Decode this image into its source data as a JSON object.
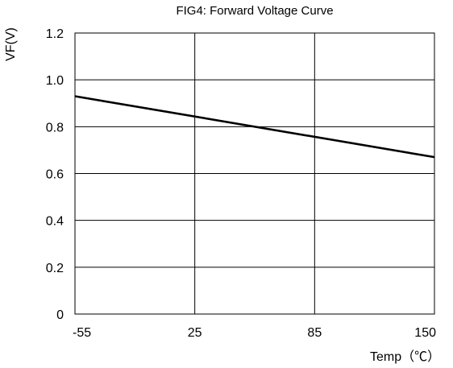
{
  "chart_data": {
    "type": "line",
    "title": "FIG4: Forward Voltage Curve",
    "xlabel": "Temp（℃）",
    "ylabel": "VF(V)",
    "x_categories": [
      "-55",
      "25",
      "85",
      "150"
    ],
    "y_ticks": [
      "0",
      "0.2",
      "0.4",
      "0.6",
      "0.8",
      "1.0",
      "1.2"
    ],
    "ylim": [
      0,
      1.2
    ],
    "grid": true,
    "series": [
      {
        "x": [
          "-55",
          "150"
        ],
        "y": [
          0.93,
          0.67
        ],
        "color": "#000000"
      }
    ]
  }
}
